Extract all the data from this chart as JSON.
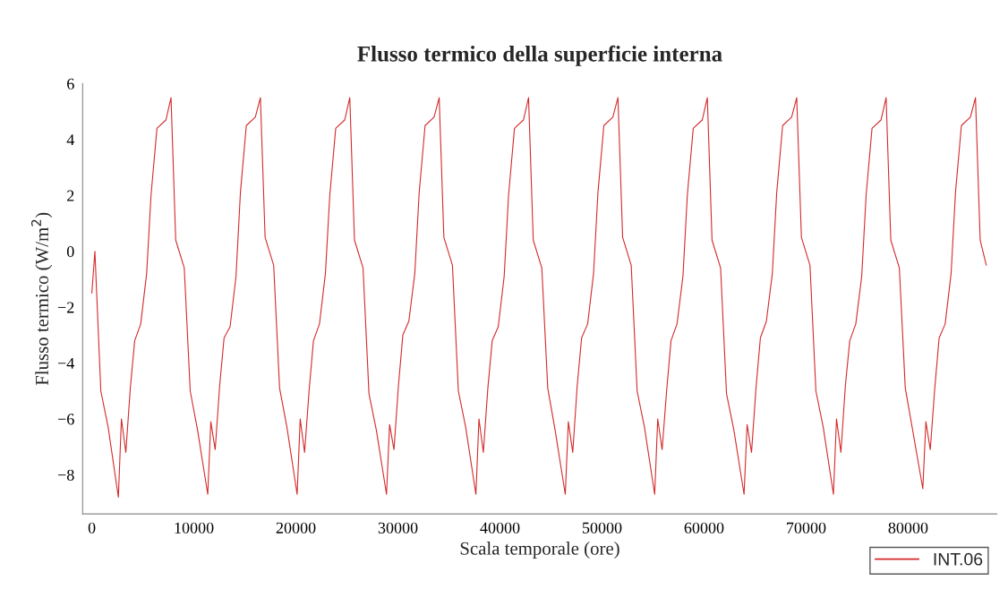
{
  "chart_data": {
    "type": "line",
    "title": "Flusso termico della superficie interna",
    "xlabel": "Scala temporale (ore)",
    "ylabel": "Flusso termico (W/m$^{2}$)",
    "xlim": [
      -900,
      88700
    ],
    "ylim": [
      -9.4,
      6
    ],
    "xticks": [
      0,
      10000,
      20000,
      30000,
      40000,
      50000,
      60000,
      70000,
      80000
    ],
    "yticks": [
      -8,
      -6,
      -4,
      -2,
      0,
      2,
      4,
      6
    ],
    "grid": false,
    "legend": "bottom right",
    "marker": "none",
    "line_style": "solid",
    "series": [
      {
        "name": "INT.06",
        "color": "#d42a2a",
        "x": [
          0,
          300,
          880,
          1600,
          2600,
          2900,
          3330,
          3770,
          4200,
          4790,
          5370,
          5800,
          6380,
          7260,
          7760,
          8220,
          9060,
          9640,
          10360,
          11360,
          11660,
          12090,
          12530,
          12960,
          13550,
          14130,
          14560,
          15140,
          16020,
          16520,
          16980,
          17820,
          18400,
          19120,
          20120,
          20420,
          20850,
          21290,
          21720,
          22310,
          22890,
          23320,
          23900,
          24780,
          25280,
          25740,
          26580,
          27160,
          27880,
          28880,
          29180,
          29610,
          30050,
          30480,
          31070,
          31650,
          32080,
          32660,
          33540,
          34040,
          34500,
          35340,
          35920,
          36640,
          37640,
          37940,
          38370,
          38810,
          39240,
          39830,
          40410,
          40840,
          41420,
          42300,
          42800,
          43260,
          44100,
          44680,
          45400,
          46400,
          46700,
          47130,
          47570,
          48000,
          48590,
          49170,
          49600,
          50180,
          51060,
          51560,
          52020,
          52860,
          53440,
          54160,
          55160,
          55460,
          55890,
          56330,
          56760,
          57350,
          57930,
          58360,
          58940,
          59820,
          60320,
          60780,
          61620,
          62200,
          62920,
          63920,
          64220,
          64650,
          65090,
          65520,
          66110,
          66690,
          67120,
          67700,
          68580,
          69080,
          69540,
          70380,
          70960,
          71680,
          72680,
          72980,
          73410,
          73850,
          74280,
          74870,
          75450,
          75880,
          76460,
          77340,
          77840,
          78300,
          79140,
          79720,
          80440,
          81440,
          81740,
          82170,
          82610,
          83040,
          83630,
          84210,
          84640,
          85220,
          86100,
          86600,
          87060,
          87660
        ],
        "values": [
          -1.5,
          0.0,
          -5.0,
          -6.3,
          -8.8,
          -6.0,
          -7.2,
          -4.9,
          -3.2,
          -2.6,
          -0.8,
          2.0,
          4.4,
          4.7,
          5.5,
          0.4,
          -0.6,
          -5.0,
          -6.4,
          -8.7,
          -6.1,
          -7.1,
          -4.8,
          -3.1,
          -2.7,
          -0.9,
          2.1,
          4.5,
          4.8,
          5.5,
          0.5,
          -0.5,
          -4.9,
          -6.3,
          -8.7,
          -6.0,
          -7.2,
          -5.0,
          -3.2,
          -2.6,
          -0.8,
          2.0,
          4.4,
          4.7,
          5.5,
          0.4,
          -0.6,
          -5.1,
          -6.4,
          -8.7,
          -6.2,
          -7.1,
          -4.8,
          -3.0,
          -2.5,
          -0.8,
          2.1,
          4.5,
          4.8,
          5.5,
          0.5,
          -0.5,
          -5.0,
          -6.3,
          -8.7,
          -6.0,
          -7.2,
          -4.9,
          -3.2,
          -2.7,
          -0.9,
          2.0,
          4.4,
          4.7,
          5.5,
          0.4,
          -0.6,
          -4.9,
          -6.4,
          -8.7,
          -6.1,
          -7.2,
          -4.8,
          -3.1,
          -2.6,
          -0.8,
          2.1,
          4.5,
          4.8,
          5.5,
          0.5,
          -0.5,
          -5.0,
          -6.3,
          -8.7,
          -6.0,
          -7.1,
          -5.0,
          -3.2,
          -2.6,
          -0.9,
          2.0,
          4.4,
          4.7,
          5.5,
          0.4,
          -0.6,
          -5.1,
          -6.4,
          -8.7,
          -6.2,
          -7.2,
          -4.9,
          -3.1,
          -2.5,
          -0.8,
          2.1,
          4.5,
          4.8,
          5.5,
          0.5,
          -0.5,
          -5.0,
          -6.3,
          -8.7,
          -6.0,
          -7.2,
          -4.8,
          -3.2,
          -2.6,
          -0.9,
          2.0,
          4.4,
          4.7,
          5.5,
          0.4,
          -0.6,
          -4.9,
          -6.4,
          -8.5,
          -6.1,
          -7.1,
          -4.9,
          -3.1,
          -2.6,
          -0.8,
          2.1,
          4.5,
          4.8,
          5.5,
          0.4,
          -0.5
        ]
      }
    ]
  }
}
